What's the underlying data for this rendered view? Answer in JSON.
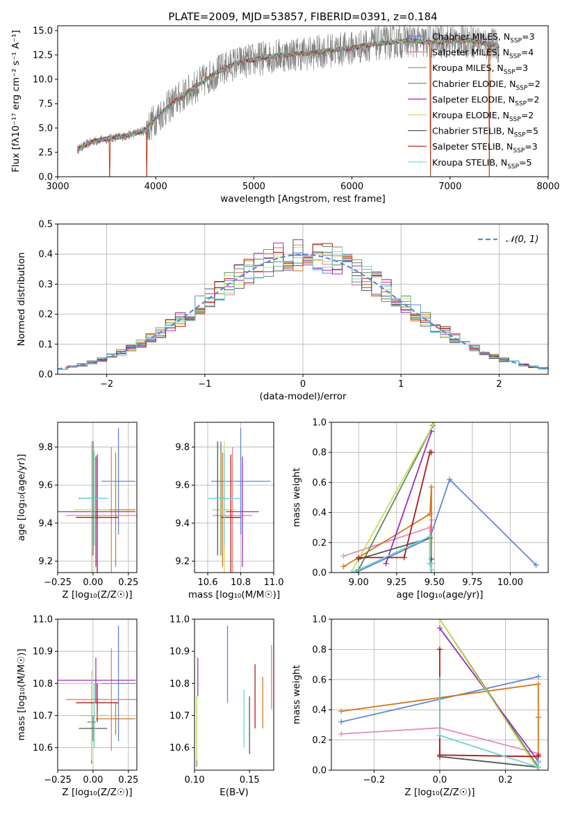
{
  "figure": {
    "title": "PLATE=2009, MJD=53857, FIBERID=0391, z=0.184",
    "colors": {
      "chabrier_miles": "#5f86d6",
      "salpeter_miles": "#e8806e",
      "kroupa_miles": "#d4761c",
      "chabrier_elodie": "#5f8a5a",
      "salpeter_elodie": "#9b2dbd",
      "kroupa_elodie": "#c6e05a",
      "chabrier_stelib": "#555555",
      "salpeter_stelib": "#b01818",
      "kroupa_stelib": "#6fd6d0",
      "kroupa_miles_line": "#d4761c",
      "salpeter_miles_line": "#e08cbf",
      "normal": "#5f86d6",
      "grid": "#b0b0b0"
    }
  },
  "chart_data": [
    {
      "id": "spectrum",
      "type": "line",
      "xlabel": "wavelength [Angstrom, rest frame]",
      "ylabel": "Flux [fλ10⁻¹⁷ erg cm⁻² s⁻¹ A⁻¹]",
      "xlim": [
        3000,
        8000
      ],
      "ylim": [
        0,
        15.5
      ],
      "xticks": [
        3000,
        4000,
        5000,
        6000,
        7000,
        8000
      ],
      "yticks": [
        0.0,
        2.5,
        5.0,
        7.5,
        10.0,
        12.5,
        15.0
      ],
      "xtick_labels": [
        "3000",
        "4000",
        "5000",
        "6000",
        "7000",
        "8000"
      ],
      "ytick_labels": [
        "0.0",
        "2.5",
        "5.0",
        "7.5",
        "10.0",
        "12.5",
        "15.0"
      ],
      "grid": false,
      "legend_position": "right",
      "legend": [
        "Chabrier MILES, N_SSP=3",
        "Salpeter MILES, N_SSP=4",
        "Kroupa MILES, N_SSP=3",
        "Chabrier ELODIE, N_SSP=2",
        "Salpeter ELODIE, N_SSP=2",
        "Kroupa ELODIE, N_SSP=2",
        "Chabrier STELIB, N_SSP=5",
        "Salpeter STELIB, N_SSP=3",
        "Kroupa STELIB, N_SSP=5"
      ],
      "data_trend": {
        "x": [
          3200,
          3350,
          3500,
          3700,
          3900,
          4000,
          4200,
          4400,
          4600,
          4800,
          5000,
          5200,
          5400,
          5600,
          5800,
          6000,
          6200,
          6400,
          6600,
          6800,
          7000,
          7200,
          7400,
          7500
        ],
        "y": [
          2.8,
          3.6,
          3.9,
          4.2,
          4.8,
          6.0,
          7.8,
          9.2,
          10.6,
          11.6,
          12.0,
          12.4,
          12.6,
          12.7,
          13.0,
          13.2,
          13.6,
          13.8,
          14.0,
          13.8,
          13.9,
          14.0,
          13.6,
          13.4
        ]
      },
      "model_drops": [
        3530,
        3910,
        6800,
        7400
      ]
    },
    {
      "id": "residuals",
      "type": "line",
      "xlabel": "(data-model)/error",
      "ylabel": "Normed distribution",
      "xlim": [
        -2.5,
        2.5
      ],
      "ylim": [
        0.0,
        0.5
      ],
      "xticks": [
        -2,
        -1,
        0,
        1,
        2
      ],
      "yticks": [
        0.0,
        0.1,
        0.2,
        0.3,
        0.4,
        0.5
      ],
      "xtick_labels": [
        "−2",
        "−1",
        "0",
        "1",
        "2"
      ],
      "ytick_labels": [
        "0.0",
        "0.1",
        "0.2",
        "0.3",
        "0.4",
        "0.5"
      ],
      "grid": true,
      "legend_position": "top-right",
      "legend": [
        "𝒩(0, 1)"
      ],
      "normal_curve": {
        "mean": 0,
        "sigma": 1
      }
    },
    {
      "id": "age_vs_Z",
      "type": "scatter",
      "xlabel": "Z [log₁₀(Z/Z☉)]",
      "ylabel": "age  [log₁₀(age/yr)]",
      "xlim": [
        -0.25,
        0.31
      ],
      "ylim": [
        9.14,
        9.93
      ],
      "xticks": [
        -0.25,
        0.0,
        0.25
      ],
      "yticks": [
        9.2,
        9.4,
        9.6,
        9.8
      ],
      "xtick_labels": [
        "−0.25",
        "0.00",
        "0.25"
      ],
      "ytick_labels": [
        "9.2",
        "9.4",
        "9.6",
        "9.8"
      ],
      "grid": true,
      "points": [
        {
          "color": "chabrier_miles",
          "x": 0.18,
          "xerr": 0.12,
          "y": 9.62,
          "yerr": 0.28
        },
        {
          "color": "salpeter_miles",
          "x": 0.13,
          "xerr": 0.32,
          "y": 9.44,
          "yerr": 0.36
        },
        {
          "color": "kroupa_miles",
          "x": 0.16,
          "xerr": 0.14,
          "y": 9.47,
          "yerr": 0.3
        },
        {
          "color": "chabrier_elodie",
          "x": -0.01,
          "xerr": 0.03,
          "y": 9.53,
          "yerr": 0.3
        },
        {
          "color": "salpeter_elodie",
          "x": 0.02,
          "xerr": 0.28,
          "y": 9.46,
          "yerr": 0.29
        },
        {
          "color": "kroupa_elodie",
          "x": -0.01,
          "xerr": 0.13,
          "y": 9.47,
          "yerr": 0.36
        },
        {
          "color": "chabrier_stelib",
          "x": 0.0,
          "xerr": 0.1,
          "y": 9.53,
          "yerr": 0.3
        },
        {
          "color": "salpeter_stelib",
          "x": 0.03,
          "xerr": 0.15,
          "y": 9.43,
          "yerr": 0.33
        },
        {
          "color": "kroupa_stelib",
          "x": 0.01,
          "xerr": 0.1,
          "y": 9.53,
          "yerr": 0.25
        }
      ]
    },
    {
      "id": "age_vs_mass",
      "type": "scatter",
      "xlabel": "mass [log₁₀(M/M☉)]",
      "ylabel": "",
      "xlim": [
        10.52,
        11.0
      ],
      "ylim": [
        9.14,
        9.93
      ],
      "xticks": [
        10.6,
        10.8,
        11.0
      ],
      "yticks": [
        9.2,
        9.4,
        9.6,
        9.8
      ],
      "xtick_labels": [
        "10.6",
        "10.8",
        "11.0"
      ],
      "ytick_labels": [
        "9.2",
        "9.4",
        "9.6",
        "9.8"
      ],
      "grid": true,
      "points": [
        {
          "color": "chabrier_miles",
          "x": 10.8,
          "xerr": 0.18,
          "y": 9.62,
          "yerr": 0.28
        },
        {
          "color": "salpeter_miles",
          "x": 10.75,
          "xerr": 0.12,
          "y": 9.44,
          "yerr": 0.36
        },
        {
          "color": "kroupa_miles",
          "x": 10.69,
          "xerr": 0.06,
          "y": 9.47,
          "yerr": 0.3
        },
        {
          "color": "chabrier_elodie",
          "x": 10.68,
          "xerr": 0.03,
          "y": 9.53,
          "yerr": 0.3
        },
        {
          "color": "salpeter_elodie",
          "x": 10.81,
          "xerr": 0.1,
          "y": 9.46,
          "yerr": 0.29
        },
        {
          "color": "kroupa_elodie",
          "x": 10.7,
          "xerr": 0.07,
          "y": 9.47,
          "yerr": 0.36
        },
        {
          "color": "chabrier_stelib",
          "x": 10.66,
          "xerr": 0.04,
          "y": 9.53,
          "yerr": 0.3
        },
        {
          "color": "salpeter_stelib",
          "x": 10.74,
          "xerr": 0.06,
          "y": 9.43,
          "yerr": 0.33
        },
        {
          "color": "kroupa_stelib",
          "x": 10.7,
          "xerr": 0.1,
          "y": 9.53,
          "yerr": 0.25
        }
      ]
    },
    {
      "id": "weight_vs_age",
      "type": "line",
      "xlabel": "age  [log₁₀(age/yr)]",
      "ylabel": "mass weight",
      "xlim": [
        8.82,
        10.25
      ],
      "ylim": [
        0.0,
        1.0
      ],
      "xticks": [
        9.0,
        9.25,
        9.5,
        9.75,
        10.0
      ],
      "yticks": [
        0.0,
        0.2,
        0.4,
        0.6,
        0.8,
        1.0
      ],
      "xtick_labels": [
        "9.00",
        "9.25",
        "9.50",
        "9.75",
        "10.00"
      ],
      "ytick_labels": [
        "0.0",
        "0.2",
        "0.4",
        "0.6",
        "0.8",
        "1.0"
      ],
      "grid": true,
      "series": [
        {
          "color": "chabrier_miles",
          "x": [
            8.98,
            9.47,
            9.6,
            10.17
          ],
          "y": [
            0.0,
            0.23,
            0.62,
            0.05
          ]
        },
        {
          "color": "salpeter_miles_line",
          "x": [
            8.9,
            9.47,
            9.47,
            9.48
          ],
          "y": [
            0.11,
            0.3,
            0.24,
            0.35
          ]
        },
        {
          "color": "kroupa_miles_line",
          "x": [
            8.9,
            9.47,
            9.48,
            9.48
          ],
          "y": [
            0.04,
            0.39,
            0.57,
            0.0
          ]
        },
        {
          "color": "chabrier_elodie",
          "x": [
            9.0,
            9.49
          ],
          "y": [
            0.02,
            0.98
          ]
        },
        {
          "color": "salpeter_elodie",
          "x": [
            9.18,
            9.48
          ],
          "y": [
            0.06,
            0.94
          ]
        },
        {
          "color": "kroupa_elodie",
          "x": [
            8.95,
            9.5
          ],
          "y": [
            0.0,
            1.0
          ]
        },
        {
          "color": "chabrier_stelib",
          "x": [
            9.0,
            9.47,
            9.47,
            9.48,
            9.48
          ],
          "y": [
            0.09,
            0.23,
            0.06,
            0.09,
            0.02
          ]
        },
        {
          "color": "salpeter_stelib",
          "x": [
            9.0,
            9.3,
            9.47,
            9.48
          ],
          "y": [
            0.1,
            0.1,
            0.8,
            0.8
          ]
        },
        {
          "color": "kroupa_stelib",
          "x": [
            8.96,
            9.47,
            9.47,
            9.48,
            9.48
          ],
          "y": [
            0.0,
            0.24,
            0.06,
            0.02,
            0.06
          ]
        }
      ]
    },
    {
      "id": "mass_vs_Z",
      "type": "scatter",
      "xlabel": "Z [log₁₀(Z/Z☉)]",
      "ylabel": "mass [log₁₀(M/M☉)]",
      "xlim": [
        -0.25,
        0.31
      ],
      "ylim": [
        10.53,
        11.0
      ],
      "xticks": [
        -0.25,
        0.0,
        0.25
      ],
      "yticks": [
        10.6,
        10.7,
        10.8,
        10.9,
        11.0
      ],
      "xtick_labels": [
        "−0.25",
        "0.00",
        "0.25"
      ],
      "ytick_labels": [
        "10.6",
        "10.7",
        "10.8",
        "10.9",
        "11.0"
      ],
      "grid": true,
      "points": [
        {
          "color": "chabrier_miles",
          "x": 0.18,
          "xerr": 0.12,
          "y": 10.8,
          "yerr": 0.18
        },
        {
          "color": "salpeter_miles",
          "x": 0.13,
          "xerr": 0.32,
          "y": 10.75,
          "yerr": 0.16
        },
        {
          "color": "kroupa_miles",
          "x": 0.16,
          "xerr": 0.14,
          "y": 10.69,
          "yerr": 0.05
        },
        {
          "color": "chabrier_elodie",
          "x": -0.01,
          "xerr": 0.03,
          "y": 10.68,
          "yerr": 0.13
        },
        {
          "color": "salpeter_elodie",
          "x": 0.02,
          "xerr": 0.28,
          "y": 10.81,
          "yerr": 0.07
        },
        {
          "color": "kroupa_elodie",
          "x": -0.01,
          "xerr": 0.13,
          "y": 10.7,
          "yerr": 0.14
        },
        {
          "color": "chabrier_stelib",
          "x": 0.0,
          "xerr": 0.1,
          "y": 10.66,
          "yerr": 0.04
        },
        {
          "color": "salpeter_stelib",
          "x": 0.03,
          "xerr": 0.15,
          "y": 10.74,
          "yerr": 0.06
        },
        {
          "color": "kroupa_stelib",
          "x": 0.01,
          "xerr": 0.1,
          "y": 10.7,
          "yerr": 0.1
        }
      ]
    },
    {
      "id": "mass_vs_ebv",
      "type": "scatter",
      "xlabel": "E(B-V)",
      "ylabel": "",
      "xlim": [
        0.1,
        0.172
      ],
      "ylim": [
        10.53,
        11.0
      ],
      "xticks": [
        0.1,
        0.15
      ],
      "yticks": [
        10.6,
        10.7,
        10.8,
        10.9,
        11.0
      ],
      "xtick_labels": [
        "0.10",
        "0.15"
      ],
      "ytick_labels": [
        "10.6",
        "10.7",
        "10.8",
        "10.9",
        "11.0"
      ],
      "grid": false,
      "points": [
        {
          "color": "chabrier_miles",
          "x": 0.13,
          "xerr": 0,
          "y": 10.86,
          "yerr": 0.12
        },
        {
          "color": "salpeter_miles",
          "x": 0.17,
          "xerr": 0,
          "y": 10.82,
          "yerr": 0.1
        },
        {
          "color": "kroupa_miles",
          "x": 0.162,
          "xerr": 0,
          "y": 10.74,
          "yerr": 0.08
        },
        {
          "color": "chabrier_elodie",
          "x": 0.102,
          "xerr": 0,
          "y": 10.65,
          "yerr": 0.11
        },
        {
          "color": "salpeter_elodie",
          "x": 0.103,
          "xerr": 0,
          "y": 10.82,
          "yerr": 0.06
        },
        {
          "color": "kroupa_elodie",
          "x": 0.102,
          "xerr": 0,
          "y": 10.66,
          "yerr": 0.1
        },
        {
          "color": "chabrier_stelib",
          "x": 0.15,
          "xerr": 0,
          "y": 10.67,
          "yerr": 0.09
        },
        {
          "color": "salpeter_stelib",
          "x": 0.155,
          "xerr": 0,
          "y": 10.76,
          "yerr": 0.1
        },
        {
          "color": "kroupa_stelib",
          "x": 0.145,
          "xerr": 0,
          "y": 10.69,
          "yerr": 0.09
        }
      ]
    },
    {
      "id": "weight_vs_Z",
      "type": "line",
      "xlabel": "Z [log₁₀(Z/Z☉)]",
      "ylabel": "mass weight",
      "xlim": [
        -0.33,
        0.33
      ],
      "ylim": [
        0.0,
        1.0
      ],
      "xticks": [
        -0.2,
        0.0,
        0.2
      ],
      "yticks": [
        0.0,
        0.2,
        0.4,
        0.6,
        0.8,
        1.0
      ],
      "xtick_labels": [
        "−0.2",
        "0.0",
        "0.2"
      ],
      "ytick_labels": [
        "0.0",
        "0.2",
        "0.4",
        "0.6",
        "0.8",
        "1.0"
      ],
      "grid": true,
      "series": [
        {
          "color": "chabrier_miles",
          "x": [
            -0.3,
            0.3
          ],
          "y": [
            0.32,
            0.62
          ]
        },
        {
          "color": "kroupa_miles_line",
          "x": [
            -0.3,
            0.3,
            0.3,
            0.3
          ],
          "y": [
            0.39,
            0.57,
            0.35,
            0.0
          ]
        },
        {
          "color": "salpeter_miles_line",
          "x": [
            -0.3,
            0.0,
            0.3,
            0.3
          ],
          "y": [
            0.24,
            0.28,
            0.11,
            0.05
          ]
        },
        {
          "color": "chabrier_elodie",
          "x": [
            0.0,
            0.3
          ],
          "y": [
            1.0,
            0.02
          ]
        },
        {
          "color": "salpeter_elodie",
          "x": [
            0.0,
            0.3
          ],
          "y": [
            0.94,
            0.06
          ]
        },
        {
          "color": "kroupa_elodie",
          "x": [
            0.0,
            0.3
          ],
          "y": [
            1.0,
            0.0
          ]
        },
        {
          "color": "chabrier_stelib",
          "x": [
            0.0,
            0.0,
            0.0,
            0.3
          ],
          "y": [
            0.6,
            0.23,
            0.09,
            0.02
          ]
        },
        {
          "color": "salpeter_stelib",
          "x": [
            0.0,
            0.0,
            0.0,
            0.3,
            0.3
          ],
          "y": [
            0.8,
            0.8,
            0.1,
            0.09,
            0.1
          ]
        },
        {
          "color": "kroupa_stelib",
          "x": [
            0.0,
            0.0,
            0.3,
            0.3
          ],
          "y": [
            0.6,
            0.23,
            0.02,
            0.06
          ]
        }
      ]
    }
  ]
}
